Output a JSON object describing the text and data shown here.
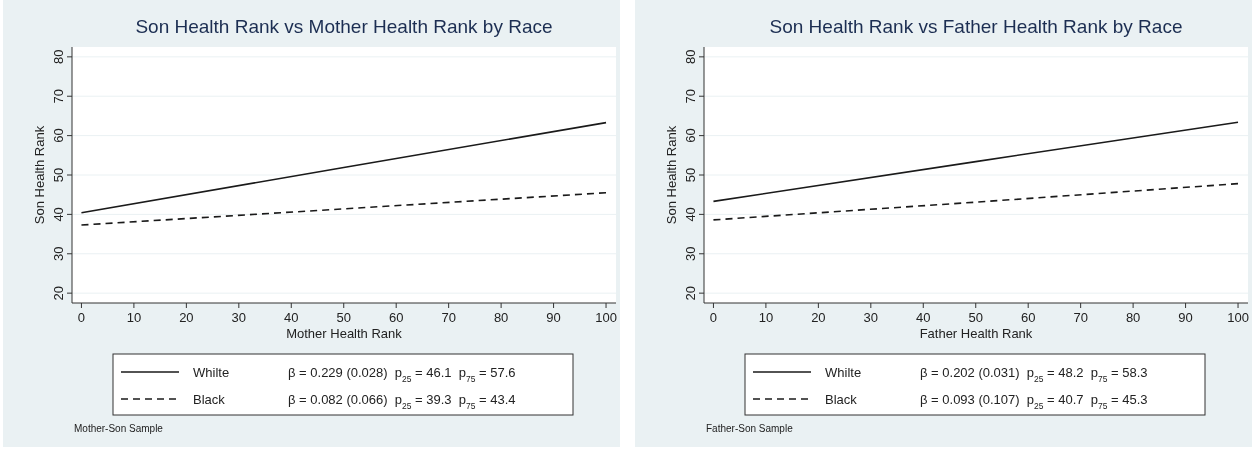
{
  "chart_data": [
    {
      "type": "line",
      "title": "Son Health Rank vs Mother Health Rank by Race",
      "xlabel": "Mother Health Rank",
      "ylabel": "Son Health Rank",
      "series": [
        {
          "name": "Whilte",
          "color": "#1a1a1a",
          "x": [
            0,
            50,
            100
          ],
          "values": [
            40.4,
            51.9,
            63.3
          ],
          "line_style": "solid"
        },
        {
          "name": "Black",
          "color": "#1a1a1a",
          "x": [
            0,
            50,
            100
          ],
          "values": [
            37.3,
            41.4,
            45.5
          ],
          "line_style": "dashed"
        }
      ],
      "annotations": [
        "β = 0.229 (0.028)  p$_{25}$ = 46.1  p$_{75}$ = 57.6",
        "β = 0.082 (0.066)  p$_{25}$ = 39.3  p$_{75}$ = 43.4",
        "Mother-Son Sample"
      ],
      "xlim": [
        -1.8,
        101.9
      ],
      "ylim": [
        17.5,
        82.5
      ],
      "xticks": [
        0,
        10,
        20,
        30,
        40,
        50,
        60,
        70,
        80,
        90,
        100
      ],
      "yticks": [
        20,
        30,
        40,
        50,
        60,
        70,
        80
      ],
      "grid": "y",
      "legend": "bottom"
    },
    {
      "type": "line",
      "title": "Son Health Rank vs Father Health Rank by Race",
      "xlabel": "Father Health Rank",
      "ylabel": "Son Health Rank",
      "series": [
        {
          "name": "Whilte",
          "color": "#1a1a1a",
          "x": [
            0,
            50,
            100
          ],
          "values": [
            43.3,
            53.4,
            63.4
          ],
          "line_style": "solid"
        },
        {
          "name": "Black",
          "color": "#1a1a1a",
          "x": [
            0,
            50,
            100
          ],
          "values": [
            38.6,
            43.1,
            47.8
          ],
          "line_style": "dashed"
        }
      ],
      "annotations": [
        "β = 0.202 (0.031)  p$_{25}$ = 48.2  p$_{75}$ = 58.3",
        "β = 0.093 (0.107)  p$_{25}$ = 40.7  p$_{75}$ = 45.3",
        "Father-Son Sample"
      ],
      "xlim": [
        -1.8,
        101.9
      ],
      "ylim": [
        17.5,
        82.5
      ],
      "xticks": [
        0,
        10,
        20,
        30,
        40,
        50,
        60,
        70,
        80,
        90,
        100
      ],
      "yticks": [
        20,
        30,
        40,
        50,
        60,
        70,
        80
      ],
      "grid": "y",
      "legend": "bottom"
    }
  ]
}
